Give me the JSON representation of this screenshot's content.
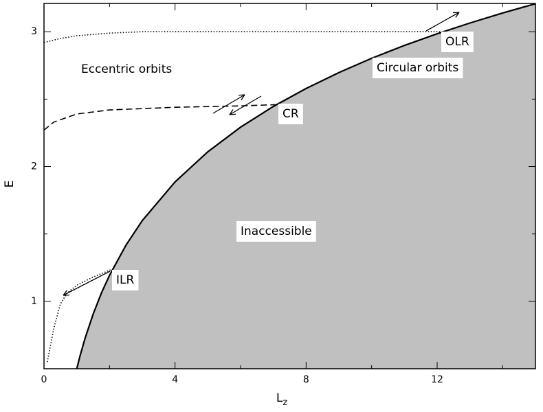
{
  "chart_data": {
    "type": "line",
    "xlabel": {
      "text": "L",
      "subscript": "z"
    },
    "ylabel": "E",
    "xlim": [
      0,
      15
    ],
    "ylim": [
      0.5,
      3.21
    ],
    "xticks": [
      0,
      4,
      8,
      12
    ],
    "yticks": [
      1,
      2,
      3
    ],
    "xminorticks": [
      2,
      6,
      10,
      14
    ],
    "yminorticks": [
      1.5,
      2.5
    ],
    "series": [
      {
        "color": "#000000",
        "style": "solid",
        "fill": "#c0c0c0",
        "x": [
          1,
          1.1,
          1.25,
          1.5,
          1.75,
          2,
          2.5,
          3,
          4,
          5,
          6,
          7,
          8,
          9,
          10,
          11,
          12,
          13,
          14,
          15
        ],
        "values": [
          0.5,
          0.595,
          0.723,
          0.905,
          1.06,
          1.193,
          1.416,
          1.599,
          1.886,
          2.109,
          2.292,
          2.446,
          2.579,
          2.697,
          2.803,
          2.898,
          2.985,
          3.065,
          3.139,
          3.208
        ]
      },
      {
        "color": "#000000",
        "style": "dotted",
        "x": [
          0,
          0.5,
          1,
          2,
          3,
          5,
          8,
          11,
          12.2
        ],
        "values": [
          2.92,
          2.95,
          2.97,
          2.99,
          3.0,
          3.0,
          3.0,
          3.0,
          3.0
        ]
      },
      {
        "color": "#000000",
        "style": "dashed",
        "x": [
          0,
          0.3,
          1,
          2,
          4,
          6,
          7.2
        ],
        "values": [
          2.27,
          2.33,
          2.39,
          2.42,
          2.44,
          2.45,
          2.46
        ]
      },
      {
        "color": "#000000",
        "style": "dotted",
        "x": [
          0.1,
          0.3,
          0.5,
          0.7,
          1.0,
          1.5,
          2.1
        ],
        "values": [
          0.55,
          0.8,
          0.98,
          1.06,
          1.12,
          1.18,
          1.24
        ]
      }
    ],
    "annotations": [
      "Eccentric orbits",
      "Circular orbits",
      "CR",
      "OLR",
      "ILR",
      "Inaccessible"
    ]
  }
}
